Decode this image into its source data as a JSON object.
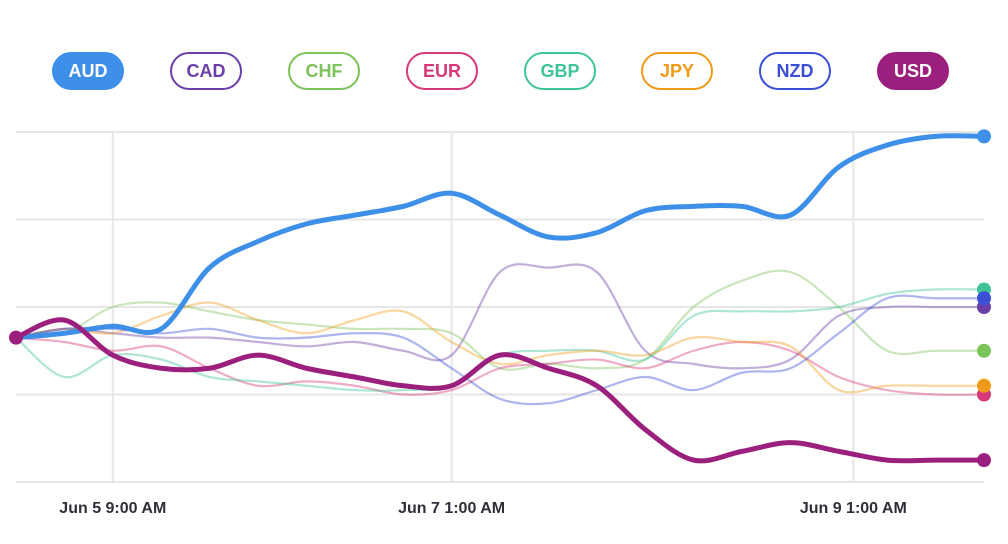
{
  "legend": [
    {
      "code": "AUD",
      "color": "#3d8fe8",
      "active": true
    },
    {
      "code": "CAD",
      "color": "#6b3fa8",
      "active": false
    },
    {
      "code": "CHF",
      "color": "#7cc35a",
      "active": false
    },
    {
      "code": "EUR",
      "color": "#d6387a",
      "active": false
    },
    {
      "code": "GBP",
      "color": "#3fc49a",
      "active": false
    },
    {
      "code": "JPY",
      "color": "#f19a1a",
      "active": false
    },
    {
      "code": "NZD",
      "color": "#3b4fd6",
      "active": false
    },
    {
      "code": "USD",
      "color": "#9b1f7d",
      "active": true
    }
  ],
  "chart_data": {
    "type": "line",
    "x_ticks": [
      "Jun 5 9:00 AM",
      "Jun 7 1:00 AM",
      "Jun 9 1:00 AM"
    ],
    "x_tick_positions": [
      0.1,
      0.45,
      0.865
    ],
    "ylim": [
      0,
      4
    ],
    "grid": true,
    "x": [
      0,
      0.05,
      0.1,
      0.15,
      0.2,
      0.25,
      0.3,
      0.35,
      0.4,
      0.45,
      0.5,
      0.55,
      0.6,
      0.65,
      0.7,
      0.75,
      0.8,
      0.85,
      0.9,
      0.95,
      1
    ],
    "series": [
      {
        "name": "AUD",
        "values": [
          1.65,
          1.7,
          1.78,
          1.75,
          2.45,
          2.75,
          2.95,
          3.05,
          3.15,
          3.3,
          3.05,
          2.8,
          2.85,
          3.1,
          3.15,
          3.15,
          3.05,
          3.6,
          3.85,
          3.95,
          3.95
        ]
      },
      {
        "name": "CAD",
        "values": [
          1.65,
          1.75,
          1.7,
          1.65,
          1.65,
          1.6,
          1.55,
          1.6,
          1.5,
          1.45,
          2.4,
          2.45,
          2.4,
          1.5,
          1.35,
          1.3,
          1.4,
          1.9,
          2.0,
          2.0,
          2.0
        ]
      },
      {
        "name": "CHF",
        "values": [
          1.65,
          1.7,
          2.0,
          2.05,
          1.95,
          1.85,
          1.8,
          1.75,
          1.75,
          1.7,
          1.3,
          1.35,
          1.3,
          1.4,
          2.0,
          2.3,
          2.4,
          2.0,
          1.5,
          1.5,
          1.5
        ]
      },
      {
        "name": "EUR",
        "values": [
          1.65,
          1.6,
          1.5,
          1.55,
          1.3,
          1.1,
          1.15,
          1.1,
          1.0,
          1.05,
          1.3,
          1.35,
          1.4,
          1.3,
          1.5,
          1.6,
          1.5,
          1.2,
          1.05,
          1.0,
          1.0
        ]
      },
      {
        "name": "GBP",
        "values": [
          1.65,
          1.2,
          1.45,
          1.4,
          1.2,
          1.15,
          1.1,
          1.05,
          1.05,
          1.1,
          1.45,
          1.5,
          1.5,
          1.4,
          1.9,
          1.95,
          1.95,
          2.0,
          2.15,
          2.2,
          2.2
        ]
      },
      {
        "name": "JPY",
        "values": [
          1.65,
          1.75,
          1.7,
          1.9,
          2.05,
          1.85,
          1.7,
          1.85,
          1.95,
          1.6,
          1.35,
          1.45,
          1.5,
          1.45,
          1.65,
          1.6,
          1.55,
          1.05,
          1.1,
          1.1,
          1.1
        ]
      },
      {
        "name": "NZD",
        "values": [
          1.65,
          1.75,
          1.75,
          1.7,
          1.75,
          1.65,
          1.65,
          1.7,
          1.65,
          1.3,
          0.95,
          0.9,
          1.05,
          1.2,
          1.05,
          1.25,
          1.3,
          1.7,
          2.1,
          2.1,
          2.1
        ]
      },
      {
        "name": "USD",
        "values": [
          1.65,
          1.85,
          1.45,
          1.3,
          1.3,
          1.45,
          1.3,
          1.2,
          1.1,
          1.1,
          1.45,
          1.3,
          1.1,
          0.6,
          0.25,
          0.35,
          0.45,
          0.35,
          0.25,
          0.25,
          0.25
        ]
      }
    ]
  }
}
